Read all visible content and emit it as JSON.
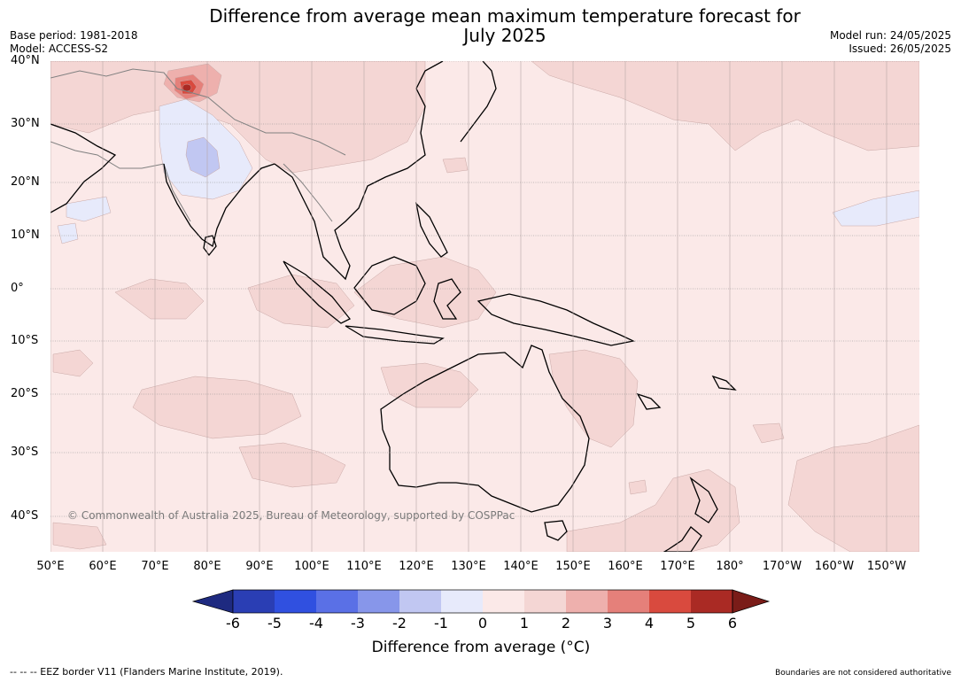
{
  "title": {
    "line1": "Difference from average mean maximum temperature forecast for",
    "line2": "July 2025"
  },
  "meta_left": {
    "base_period": "Base period: 1981-2018",
    "model": "Model: ACCESS-S2"
  },
  "meta_right": {
    "model_run": "Model run: 24/05/2025",
    "issued": "Issued: 26/05/2025"
  },
  "map": {
    "ocean_color": "#fbe9e8",
    "land_color": "#fbe9e8",
    "warm1_color": "#f4d6d4",
    "warm2_color": "#eeb0ad",
    "warm3_color": "#e5807a",
    "warm4_color": "#d94a3e",
    "warm5_color": "#aa2a24",
    "cool1_color": "#e7eafb",
    "cool2_color": "#c1c7f2",
    "coast_color": "#000000",
    "border_color": "#808080",
    "lat_labels": [
      "40°N",
      "30°N",
      "20°N",
      "10°N",
      "0°",
      "10°S",
      "20°S",
      "30°S",
      "40°S"
    ],
    "lon_labels": [
      "50°E",
      "60°E",
      "70°E",
      "80°E",
      "90°E",
      "100°E",
      "110°E",
      "120°E",
      "130°E",
      "140°E",
      "150°E",
      "160°E",
      "170°E",
      "180°",
      "170°W",
      "160°W",
      "150°W"
    ],
    "copyright": "© Commonwealth of Australia 2025, Bureau of Meteorology, supported by COSPPac"
  },
  "colorbar": {
    "colors": [
      "#1e2a80",
      "#2a3eb4",
      "#3050e0",
      "#5a70e6",
      "#8796ea",
      "#c1c7f2",
      "#e7eafb",
      "#fbe9e8",
      "#f4d6d4",
      "#eeb0ad",
      "#e5807a",
      "#d94a3e",
      "#aa2a24",
      "#7a1c18"
    ],
    "labels": [
      "-6",
      "-5",
      "-4",
      "-3",
      "-2",
      "-1",
      "0",
      "1",
      "2",
      "3",
      "4",
      "5",
      "6"
    ],
    "title": "Difference from average (°C)"
  },
  "footer": {
    "eez_note": "--  --  -- EEZ border V11 (Flanders Marine Institute, 2019).",
    "boundaries_note": "Boundaries are not considered authoritative"
  }
}
